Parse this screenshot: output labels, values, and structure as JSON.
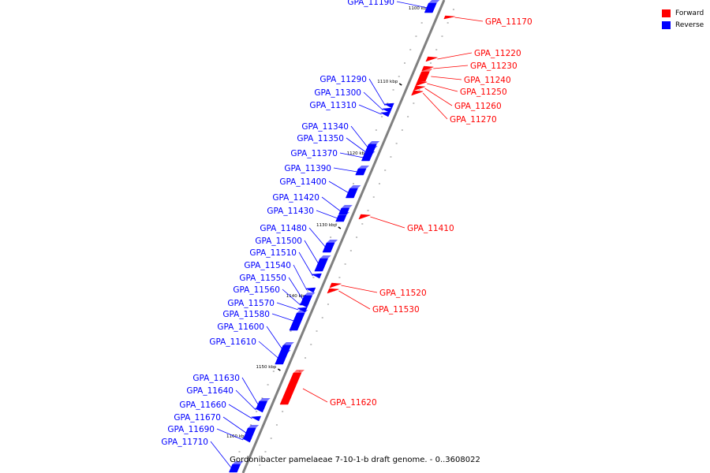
{
  "title": "Gordonibacter pamelaeae 7-10-1-b draft genome. - 0..3608022",
  "legend": [
    {
      "label": "Forward",
      "color": "#ff0000"
    },
    {
      "label": "Reverse",
      "color": "#0000ff"
    }
  ],
  "colors": {
    "forward": "#ff0000",
    "reverse": "#0000ff",
    "backbone": "#808080"
  },
  "ticks": [
    "1100 kbp",
    "1110 kbp",
    "1120 kbp",
    "1130 kbp",
    "1140 kbp",
    "1150 kbp",
    "1160 kbp"
  ],
  "genes": [
    {
      "name": "GPA_11170",
      "strand": "forward"
    },
    {
      "name": "GPA_11190",
      "strand": "reverse"
    },
    {
      "name": "GPA_11220",
      "strand": "forward"
    },
    {
      "name": "GPA_11230",
      "strand": "forward"
    },
    {
      "name": "GPA_11240",
      "strand": "forward"
    },
    {
      "name": "GPA_11250",
      "strand": "forward"
    },
    {
      "name": "GPA_11260",
      "strand": "forward"
    },
    {
      "name": "GPA_11270",
      "strand": "forward"
    },
    {
      "name": "GPA_11290",
      "strand": "reverse"
    },
    {
      "name": "GPA_11300",
      "strand": "reverse"
    },
    {
      "name": "GPA_11310",
      "strand": "reverse"
    },
    {
      "name": "GPA_11340",
      "strand": "reverse"
    },
    {
      "name": "GPA_11350",
      "strand": "reverse"
    },
    {
      "name": "GPA_11370",
      "strand": "reverse"
    },
    {
      "name": "GPA_11390",
      "strand": "reverse"
    },
    {
      "name": "GPA_11400",
      "strand": "reverse"
    },
    {
      "name": "GPA_11410",
      "strand": "forward"
    },
    {
      "name": "GPA_11420",
      "strand": "reverse"
    },
    {
      "name": "GPA_11430",
      "strand": "reverse"
    },
    {
      "name": "GPA_11480",
      "strand": "reverse"
    },
    {
      "name": "GPA_11500",
      "strand": "reverse"
    },
    {
      "name": "GPA_11510",
      "strand": "reverse"
    },
    {
      "name": "GPA_11520",
      "strand": "forward"
    },
    {
      "name": "GPA_11530",
      "strand": "forward"
    },
    {
      "name": "GPA_11540",
      "strand": "reverse"
    },
    {
      "name": "GPA_11550",
      "strand": "reverse"
    },
    {
      "name": "GPA_11560",
      "strand": "reverse"
    },
    {
      "name": "GPA_11570",
      "strand": "reverse"
    },
    {
      "name": "GPA_11580",
      "strand": "reverse"
    },
    {
      "name": "GPA_11600",
      "strand": "reverse"
    },
    {
      "name": "GPA_11610",
      "strand": "reverse"
    },
    {
      "name": "GPA_11620",
      "strand": "forward"
    },
    {
      "name": "GPA_11630",
      "strand": "reverse"
    },
    {
      "name": "GPA_11640",
      "strand": "reverse"
    },
    {
      "name": "GPA_11660",
      "strand": "reverse"
    },
    {
      "name": "GPA_11670",
      "strand": "reverse"
    },
    {
      "name": "GPA_11690",
      "strand": "reverse"
    },
    {
      "name": "GPA_11710",
      "strand": "reverse"
    }
  ]
}
